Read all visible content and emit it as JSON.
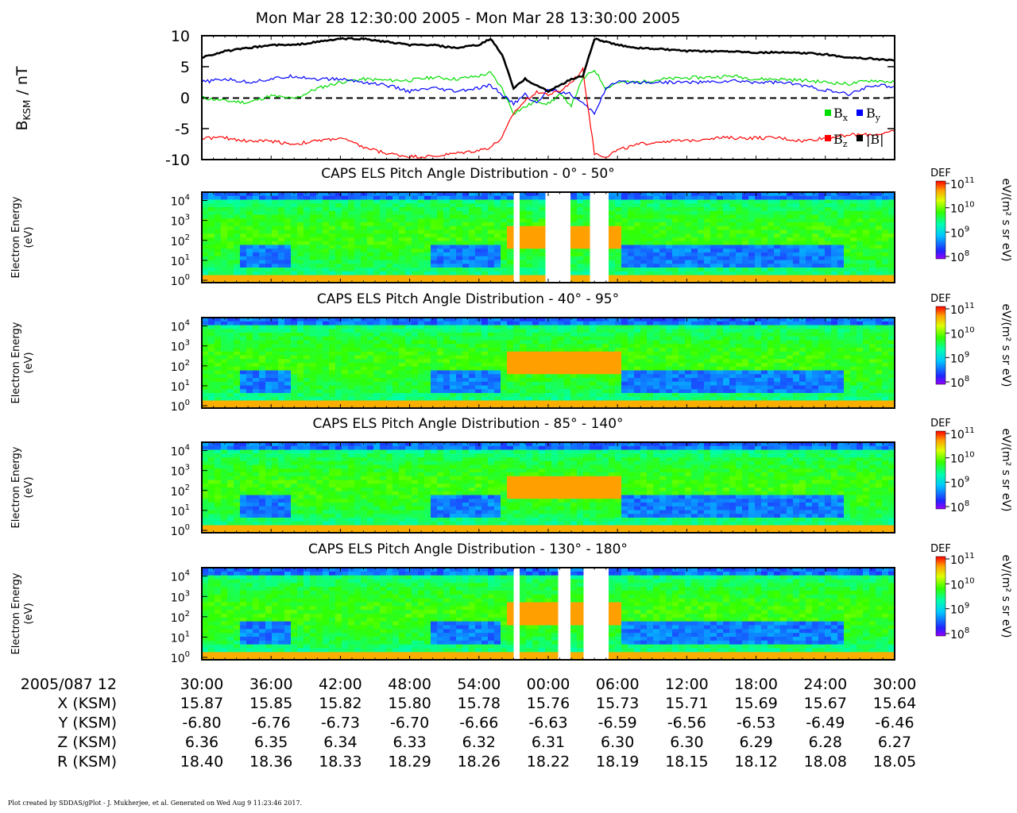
{
  "title": "Mon Mar 28 12:30:00 2005 - Mon Mar 28 13:30:00 2005",
  "credit": "Plot created by SDDAS/gPlot - J. Mukherjee, et al.  Generated on Wed Aug 9 11:23:46 2017.",
  "colors": {
    "bx": "#00dd00",
    "by": "#0000ff",
    "bz": "#ff0000",
    "b": "#000000"
  },
  "time_axis": {
    "row_label": "2005/087 12",
    "ticks": [
      "30:00",
      "36:00",
      "42:00",
      "48:00",
      "54:00",
      "00:00",
      "06:00",
      "12:00",
      "18:00",
      "24:00",
      "30:00"
    ],
    "rows": [
      {
        "label": "X (KSM)",
        "values": [
          "15.87",
          "15.85",
          "15.82",
          "15.80",
          "15.78",
          "15.76",
          "15.73",
          "15.71",
          "15.69",
          "15.67",
          "15.64"
        ]
      },
      {
        "label": "Y (KSM)",
        "values": [
          "-6.80",
          "-6.76",
          "-6.73",
          "-6.70",
          "-6.66",
          "-6.63",
          "-6.59",
          "-6.56",
          "-6.53",
          "-6.49",
          "-6.46"
        ]
      },
      {
        "label": "Z (KSM)",
        "values": [
          "6.36",
          "6.35",
          "6.34",
          "6.33",
          "6.32",
          "6.31",
          "6.30",
          "6.30",
          "6.29",
          "6.28",
          "6.27"
        ]
      },
      {
        "label": "R (KSM)",
        "values": [
          "18.40",
          "18.36",
          "18.33",
          "18.29",
          "18.26",
          "18.22",
          "18.19",
          "18.15",
          "18.12",
          "18.08",
          "18.05"
        ]
      }
    ]
  },
  "chart_data": [
    {
      "type": "line",
      "ylabel_main": "B",
      "ylabel_sub": "KSM",
      "ylabel_unit": " / nT",
      "ylim": [
        -10,
        10
      ],
      "yticks": [
        "10",
        "5",
        "0",
        "-5",
        "-10"
      ],
      "x_minutes": [
        0,
        2,
        4,
        6,
        8,
        10,
        12,
        14,
        16,
        18,
        20,
        22,
        24,
        25,
        26,
        27,
        28,
        29,
        30,
        31,
        32,
        33,
        34,
        35,
        36,
        38,
        40,
        42,
        44,
        46,
        48,
        50,
        52,
        54,
        56,
        58,
        60
      ],
      "series": [
        {
          "name": "Bx",
          "values": [
            0,
            -0.5,
            -0.8,
            0.3,
            -0.2,
            1.5,
            2.5,
            3,
            2.8,
            2.8,
            3.3,
            3,
            3.5,
            4,
            1.5,
            -2.5,
            -1.5,
            -0.5,
            -1,
            0.5,
            -1.2,
            3,
            4.5,
            1.5,
            2.5,
            2.5,
            3,
            3.2,
            3.3,
            3.5,
            3,
            3,
            2.8,
            2.5,
            2.2,
            2.8,
            2.5
          ]
        },
        {
          "name": "By",
          "values": [
            2.5,
            3,
            2.5,
            3,
            3.5,
            3,
            3,
            2.5,
            2,
            1,
            1.5,
            1,
            1.5,
            2,
            0.5,
            -1,
            0.5,
            -1,
            1.5,
            1,
            0.5,
            -1,
            -2.5,
            1.5,
            2.5,
            2.5,
            2.5,
            2.5,
            2.5,
            2.7,
            2.5,
            2.5,
            2,
            1.2,
            0.5,
            2,
            1.8
          ]
        },
        {
          "name": "Bz",
          "values": [
            -6.5,
            -6.5,
            -7,
            -7,
            -7.5,
            -7,
            -6.5,
            -8,
            -9,
            -9.5,
            -9.5,
            -9,
            -8.5,
            -8,
            -6.5,
            -2.5,
            -0.5,
            1,
            0.5,
            1,
            2.5,
            4.5,
            -9,
            -9.5,
            -8.5,
            -7.5,
            -7,
            -7,
            -6.5,
            -6.5,
            -6.5,
            -6.5,
            -7,
            -6.5,
            -6,
            -6,
            -5.5
          ]
        },
        {
          "name": "|B|",
          "values": [
            6.5,
            7.5,
            8,
            8.5,
            8.5,
            9,
            9.5,
            9.5,
            9,
            8.5,
            8.5,
            8,
            8.5,
            9.5,
            7,
            1.5,
            3,
            2,
            1,
            2,
            3,
            3.5,
            9.5,
            9,
            8.5,
            8,
            7.8,
            7.5,
            7.5,
            7.5,
            7.3,
            7.3,
            7.2,
            7,
            6.5,
            6.3,
            6
          ]
        }
      ],
      "legend_placement": "bottom-right"
    },
    {
      "type": "heatmap",
      "title": "CAPS ELS Pitch Angle Distribution - 0° - 50°",
      "ylabel": "Electron Energy",
      "yunit": "(eV)",
      "yticks": [
        "10^4",
        "10^3",
        "10^2",
        "10^1",
        "10^0"
      ],
      "colorbar": {
        "label": "DEF",
        "unit": "eV/(m² s sr eV)",
        "ticks": [
          "10^11",
          "10^10",
          "10^9",
          "10^8"
        ]
      }
    },
    {
      "type": "heatmap",
      "title": "CAPS ELS Pitch Angle Distribution - 40° - 95°",
      "ylabel": "Electron Energy",
      "yunit": "(eV)",
      "yticks": [
        "10^4",
        "10^3",
        "10^2",
        "10^1",
        "10^0"
      ],
      "colorbar": {
        "label": "DEF",
        "unit": "eV/(m² s sr eV)",
        "ticks": [
          "10^11",
          "10^10",
          "10^9",
          "10^8"
        ]
      }
    },
    {
      "type": "heatmap",
      "title": "CAPS ELS Pitch Angle Distribution - 85° - 140°",
      "ylabel": "Electron Energy",
      "yunit": "(eV)",
      "yticks": [
        "10^4",
        "10^3",
        "10^2",
        "10^1",
        "10^0"
      ],
      "colorbar": {
        "label": "DEF",
        "unit": "eV/(m² s sr eV)",
        "ticks": [
          "10^11",
          "10^10",
          "10^9",
          "10^8"
        ]
      }
    },
    {
      "type": "heatmap",
      "title": "CAPS ELS Pitch Angle Distribution - 130° - 180°",
      "ylabel": "Electron Energy",
      "yunit": "(eV)",
      "yticks": [
        "10^4",
        "10^3",
        "10^2",
        "10^1",
        "10^0"
      ],
      "colorbar": {
        "label": "DEF",
        "unit": "eV/(m² s sr eV)",
        "ticks": [
          "10^11",
          "10^10",
          "10^9",
          "10^8"
        ]
      }
    }
  ]
}
